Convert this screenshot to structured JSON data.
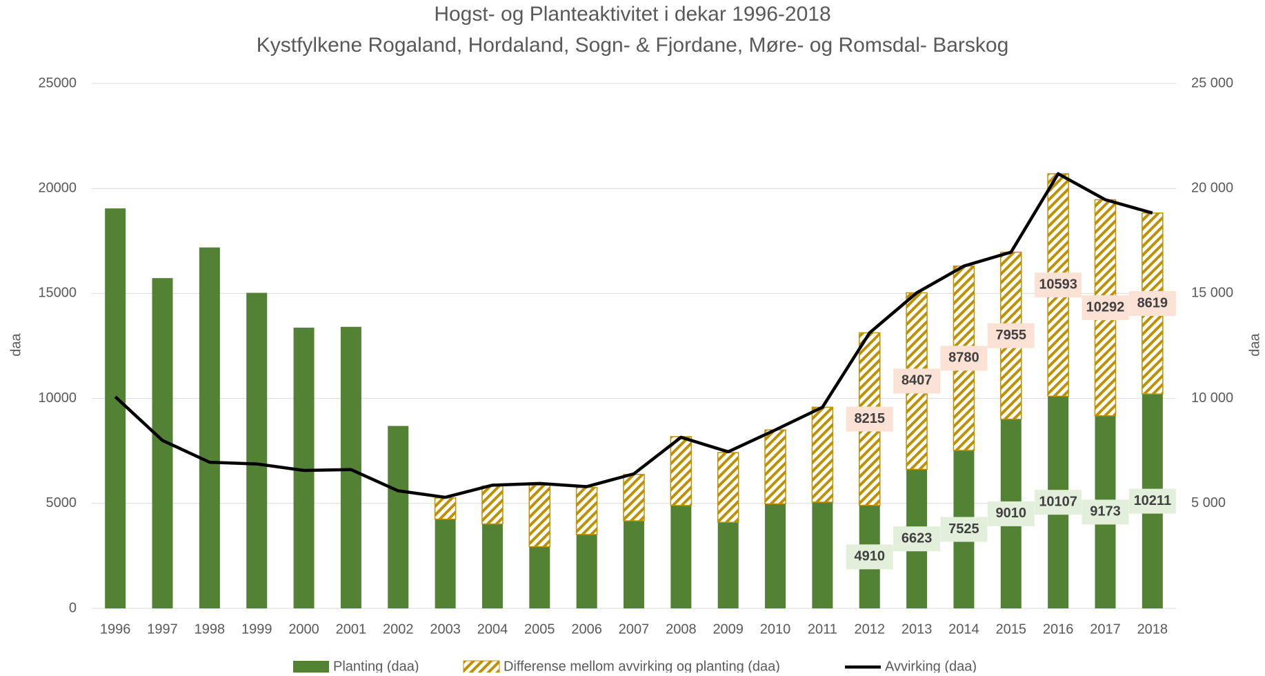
{
  "chart_data": {
    "type": "bar",
    "title": "Hogst- og Planteaktivitet i dekar 1996-2018",
    "subtitle": "Kystfylkene Rogaland, Hordaland, Sogn- & Fjordane, Møre- og Romsdal- Barskog",
    "ylabel": "daa",
    "y2label": "daa",
    "categories": [
      "1996",
      "1997",
      "1998",
      "1999",
      "2000",
      "2001",
      "2002",
      "2003",
      "2004",
      "2005",
      "2006",
      "2007",
      "2008",
      "2009",
      "2010",
      "2011",
      "2012",
      "2013",
      "2014",
      "2015",
      "2016",
      "2017",
      "2018"
    ],
    "stacked": true,
    "grid": true,
    "legend": "bottom",
    "ylim": [
      0,
      25000
    ],
    "yticks": [
      0,
      5000,
      10000,
      15000,
      20000,
      25000
    ],
    "y2lim": [
      0,
      25000
    ],
    "y2ticks": [
      {
        "value": 5000,
        "label": "5 000"
      },
      {
        "value": 10000,
        "label": "10 000"
      },
      {
        "value": 15000,
        "label": "15 000"
      },
      {
        "value": 20000,
        "label": "20 000"
      },
      {
        "value": 25000,
        "label": "25 000"
      }
    ],
    "series": [
      {
        "name": "Planting (daa)",
        "color": "#548235",
        "type": "bar",
        "values": [
          19050,
          15730,
          17190,
          15030,
          13370,
          13410,
          8690,
          4250,
          4020,
          2940,
          3520,
          4170,
          4900,
          4100,
          4980,
          5060,
          4910,
          6623,
          7525,
          9010,
          10107,
          9173,
          10211
        ],
        "value_labels": [
          null,
          null,
          null,
          null,
          null,
          null,
          null,
          null,
          null,
          null,
          null,
          null,
          null,
          null,
          null,
          null,
          "4910",
          "6623",
          "7525",
          "9010",
          "10107",
          "9173",
          "10211"
        ]
      },
      {
        "name": "Differense mellom avvirking og planting (daa)",
        "color": "#bf9000",
        "type": "bar",
        "values": [
          null,
          null,
          null,
          null,
          null,
          null,
          null,
          1010,
          1810,
          2930,
          2240,
          2210,
          3280,
          3320,
          3520,
          4520,
          8215,
          8407,
          8780,
          7955,
          10593,
          10292,
          8619
        ],
        "value_labels": [
          null,
          null,
          null,
          null,
          null,
          null,
          null,
          null,
          null,
          null,
          null,
          null,
          null,
          null,
          null,
          null,
          "8215",
          "8407",
          "8780",
          "7955",
          "10593",
          "10292",
          "8619"
        ]
      },
      {
        "name": "Avvirking (daa)",
        "color": "#000000",
        "type": "line",
        "axis": "y2",
        "values": [
          10080,
          8000,
          6960,
          6880,
          6570,
          6610,
          5600,
          5290,
          5870,
          5950,
          5800,
          6410,
          8150,
          7460,
          8500,
          9580,
          13125,
          15030,
          16305,
          16965,
          20700,
          19465,
          18830
        ]
      }
    ]
  }
}
